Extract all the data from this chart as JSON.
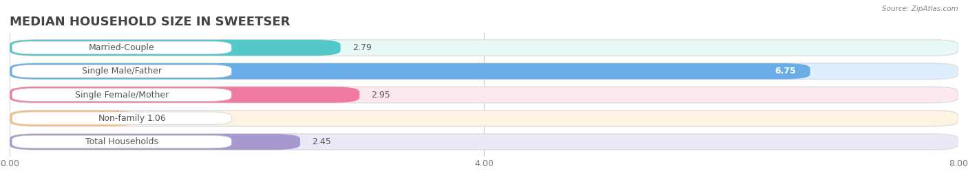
{
  "title": "MEDIAN HOUSEHOLD SIZE IN SWEETSER",
  "source": "Source: ZipAtlas.com",
  "categories": [
    "Married-Couple",
    "Single Male/Father",
    "Single Female/Mother",
    "Non-family",
    "Total Households"
  ],
  "values": [
    2.79,
    6.75,
    2.95,
    1.06,
    2.45
  ],
  "bar_colors": [
    "#52c8c8",
    "#6aaee8",
    "#f07aa0",
    "#f5c080",
    "#a898d0"
  ],
  "bar_bg_colors": [
    "#e8f8f8",
    "#ddeeff",
    "#fde8ef",
    "#fef2e0",
    "#ede8f8"
  ],
  "label_colors": [
    "#2a2a2a",
    "#ffffff",
    "#2a2a2a",
    "#2a2a2a",
    "#2a2a2a"
  ],
  "xlim": [
    0,
    8.0
  ],
  "xticks": [
    0.0,
    4.0,
    8.0
  ],
  "xtick_labels": [
    "0.00",
    "4.00",
    "8.00"
  ],
  "background_color": "#ffffff",
  "title_fontsize": 13,
  "tick_fontsize": 9,
  "label_fontsize": 9,
  "value_fontsize": 9
}
